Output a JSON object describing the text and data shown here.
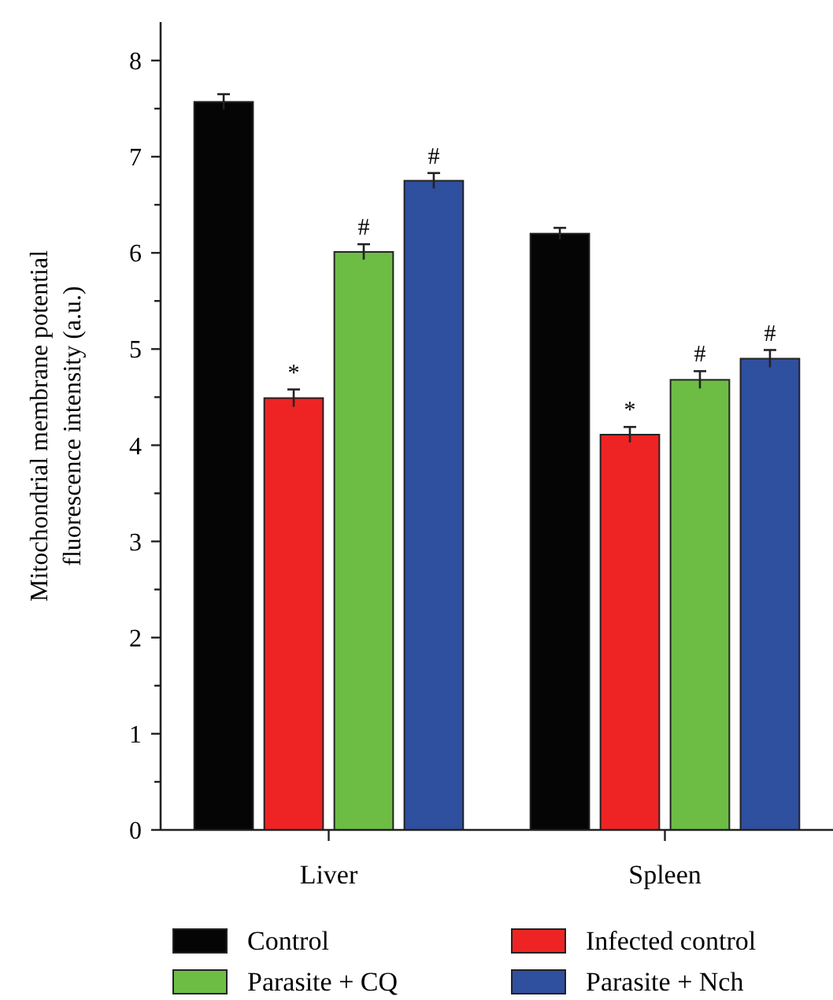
{
  "chart_data": {
    "type": "bar",
    "ylabel": "Mitochondrial membrane potential\nfluorescence intensity (a.u.)",
    "categories": [
      "Liver",
      "Spleen"
    ],
    "series": [
      {
        "name": "Control",
        "color": "#050505",
        "values": [
          7.57,
          6.2
        ],
        "errors": [
          0.08,
          0.06
        ]
      },
      {
        "name": "Infected control",
        "color": "#ee2424",
        "values": [
          4.49,
          4.11
        ],
        "errors": [
          0.09,
          0.08
        ]
      },
      {
        "name": "Parasite + CQ",
        "color": "#6dbd45",
        "values": [
          6.01,
          4.68
        ],
        "errors": [
          0.08,
          0.09
        ]
      },
      {
        "name": "Parasite + Nch",
        "color": "#2f4f9f",
        "values": [
          6.75,
          4.9
        ],
        "errors": [
          0.08,
          0.09
        ]
      }
    ],
    "ylim": [
      0,
      8.4
    ],
    "yticks": [
      0,
      {
        "value": 0.5,
        "label": null
      },
      1,
      {
        "value": 1.5,
        "label": null
      },
      2,
      {
        "value": 2.5,
        "label": null
      },
      3,
      {
        "value": 3.5,
        "label": null
      },
      4,
      {
        "value": 4.5,
        "label": null
      },
      5,
      {
        "value": 5.5,
        "label": null
      },
      6,
      {
        "value": 6.5,
        "label": null
      },
      7,
      {
        "value": 7.5,
        "label": null
      },
      8
    ],
    "annotations": [
      "*",
      "#",
      "#",
      "*",
      "#",
      "#"
    ],
    "legend": "bottom",
    "grid": false
  }
}
